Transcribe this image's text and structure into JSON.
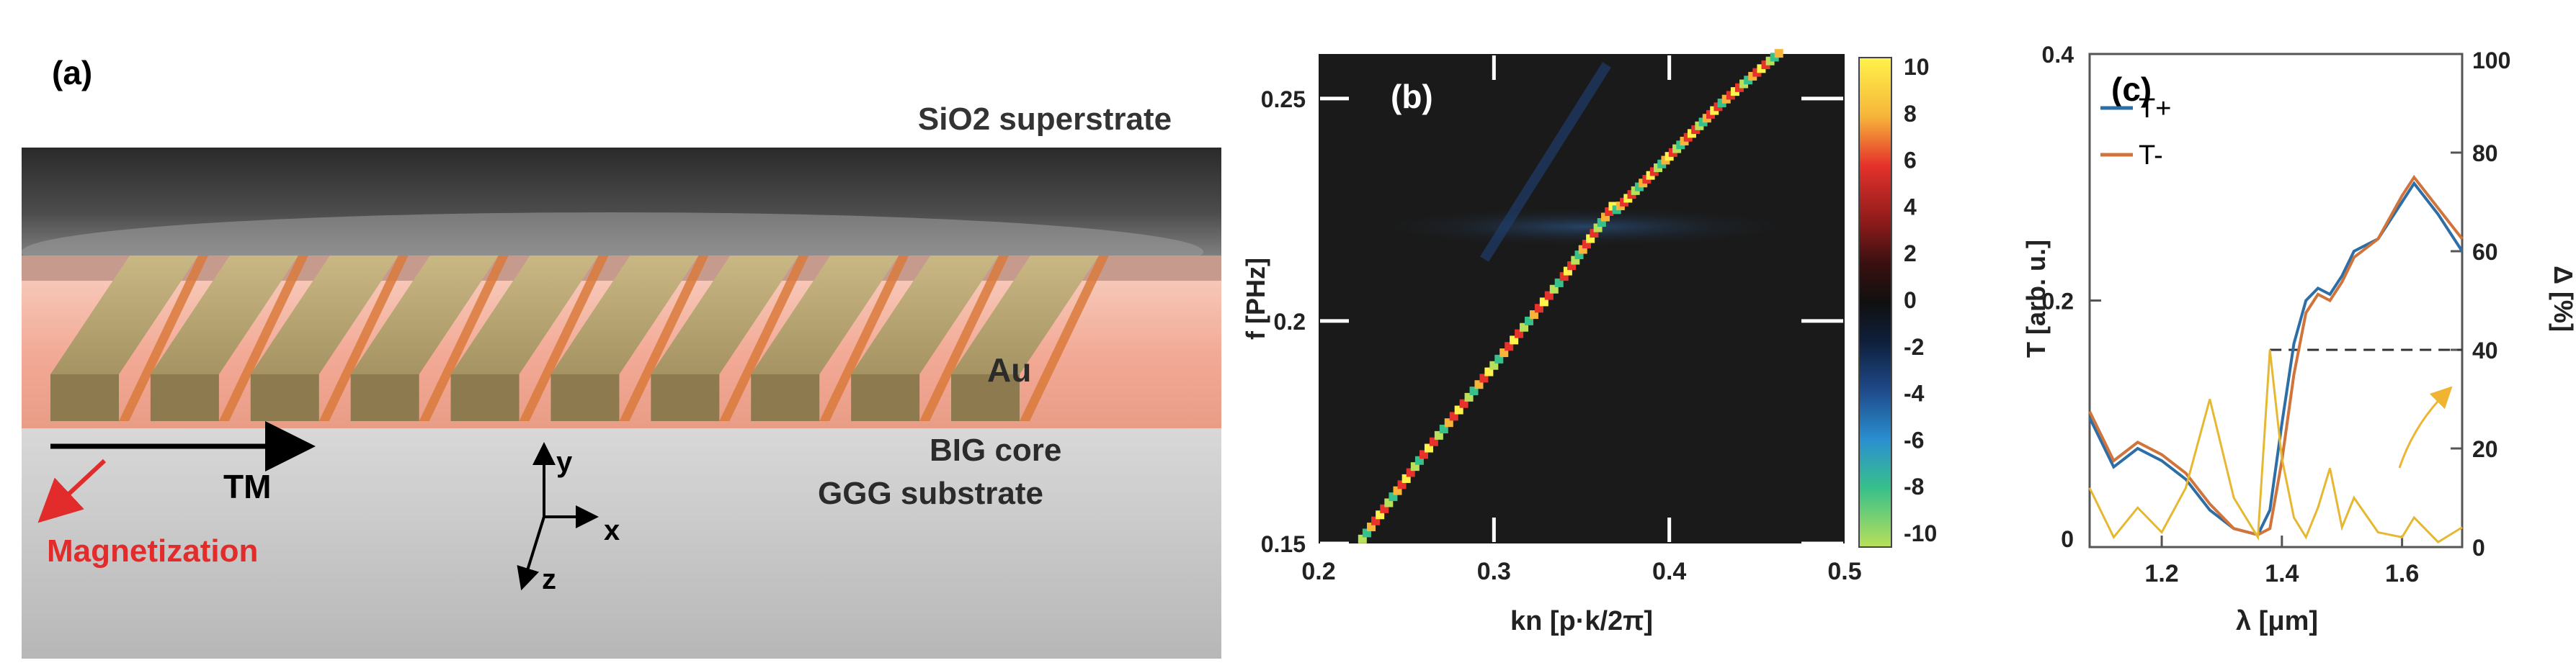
{
  "panel_a": {
    "label": "(a)",
    "superstrate": "SiO2 superstrate",
    "metal": "Au",
    "core": "BIG core",
    "substrate": "GGG substrate",
    "mode": "TM",
    "magnetization": "Magnetization",
    "axis_x": "x",
    "axis_y": "y",
    "axis_z": "z",
    "grating_bars": 10
  },
  "panel_b": {
    "label": "(b)",
    "xlabel": "kn [p·k/2π]",
    "ylabel": "f [PHz]",
    "xticks": [
      "0.2",
      "0.3",
      "0.4",
      "0.5"
    ],
    "yticks": [
      "0.15",
      "0.2",
      "0.25"
    ],
    "colorbar_ticks": [
      "10",
      "8",
      "6",
      "4",
      "2",
      "0",
      "-2",
      "-4",
      "-6",
      "-8",
      "-10"
    ]
  },
  "panel_c": {
    "label": "(c)",
    "xlabel": "λ [μm]",
    "ylabel_left": "T [arb. u.]",
    "ylabel_right": "Δ [%]",
    "xticks": [
      "1.2",
      "1.4",
      "1.6"
    ],
    "yticks_left": [
      "0",
      "0.2",
      "0.4"
    ],
    "yticks_right": [
      "0",
      "20",
      "40",
      "60",
      "80",
      "100"
    ],
    "legend": [
      {
        "name": "T+",
        "color": "#2e6ea6"
      },
      {
        "name": "T-",
        "color": "#d0743c"
      }
    ],
    "delta_color": "#e6b832"
  },
  "chart_data": [
    {
      "type": "heatmap",
      "title": "",
      "xlabel": "kn [p·k/2π]",
      "ylabel": "f [PHz]",
      "xlim": [
        0.2,
        0.5
      ],
      "ylim": [
        0.15,
        0.26
      ],
      "colorbar_range": [
        -10,
        10
      ],
      "series": [
        {
          "values": [
            [
              0.225,
              0.151
            ],
            [
              0.26,
              0.17
            ],
            [
              0.3,
              0.19
            ],
            [
              0.34,
              0.21
            ],
            [
              0.37,
              0.227
            ]
          ]
        },
        {
          "values": [
            [
              0.37,
              0.225
            ],
            [
              0.4,
              0.237
            ],
            [
              0.43,
              0.249
            ],
            [
              0.465,
              0.261
            ]
          ]
        }
      ]
    },
    {
      "type": "line",
      "title": "",
      "xlabel": "λ [μm]",
      "ylabel": "T [arb. u.]",
      "y2label": "Δ [%]",
      "xlim": [
        1.08,
        1.7
      ],
      "ylim": [
        0,
        0.4
      ],
      "y2lim": [
        0,
        100
      ],
      "x": [
        1.08,
        1.12,
        1.16,
        1.2,
        1.24,
        1.28,
        1.32,
        1.36,
        1.38,
        1.4,
        1.42,
        1.44,
        1.46,
        1.48,
        1.5,
        1.52,
        1.56,
        1.6,
        1.62,
        1.66,
        1.7
      ],
      "series": [
        {
          "name": "T+",
          "axis": "left",
          "values": [
            0.105,
            0.065,
            0.08,
            0.07,
            0.055,
            0.03,
            0.015,
            0.01,
            0.03,
            0.1,
            0.165,
            0.2,
            0.21,
            0.205,
            0.22,
            0.24,
            0.25,
            0.28,
            0.295,
            0.27,
            0.24
          ]
        },
        {
          "name": "T-",
          "axis": "left",
          "values": [
            0.11,
            0.07,
            0.085,
            0.075,
            0.06,
            0.035,
            0.015,
            0.01,
            0.015,
            0.07,
            0.14,
            0.19,
            0.205,
            0.2,
            0.215,
            0.235,
            0.25,
            0.285,
            0.3,
            0.275,
            0.25
          ]
        },
        {
          "name": "",
          "axis": "right",
          "values": [
            12,
            2,
            8,
            3,
            12,
            30,
            10,
            2,
            40,
            18,
            6,
            2,
            8,
            16,
            4,
            10,
            3,
            2,
            6,
            1,
            4
          ]
        }
      ],
      "annotations": [
        {
          "type": "dashed-line",
          "value": 40,
          "axis": "right"
        }
      ]
    }
  ]
}
